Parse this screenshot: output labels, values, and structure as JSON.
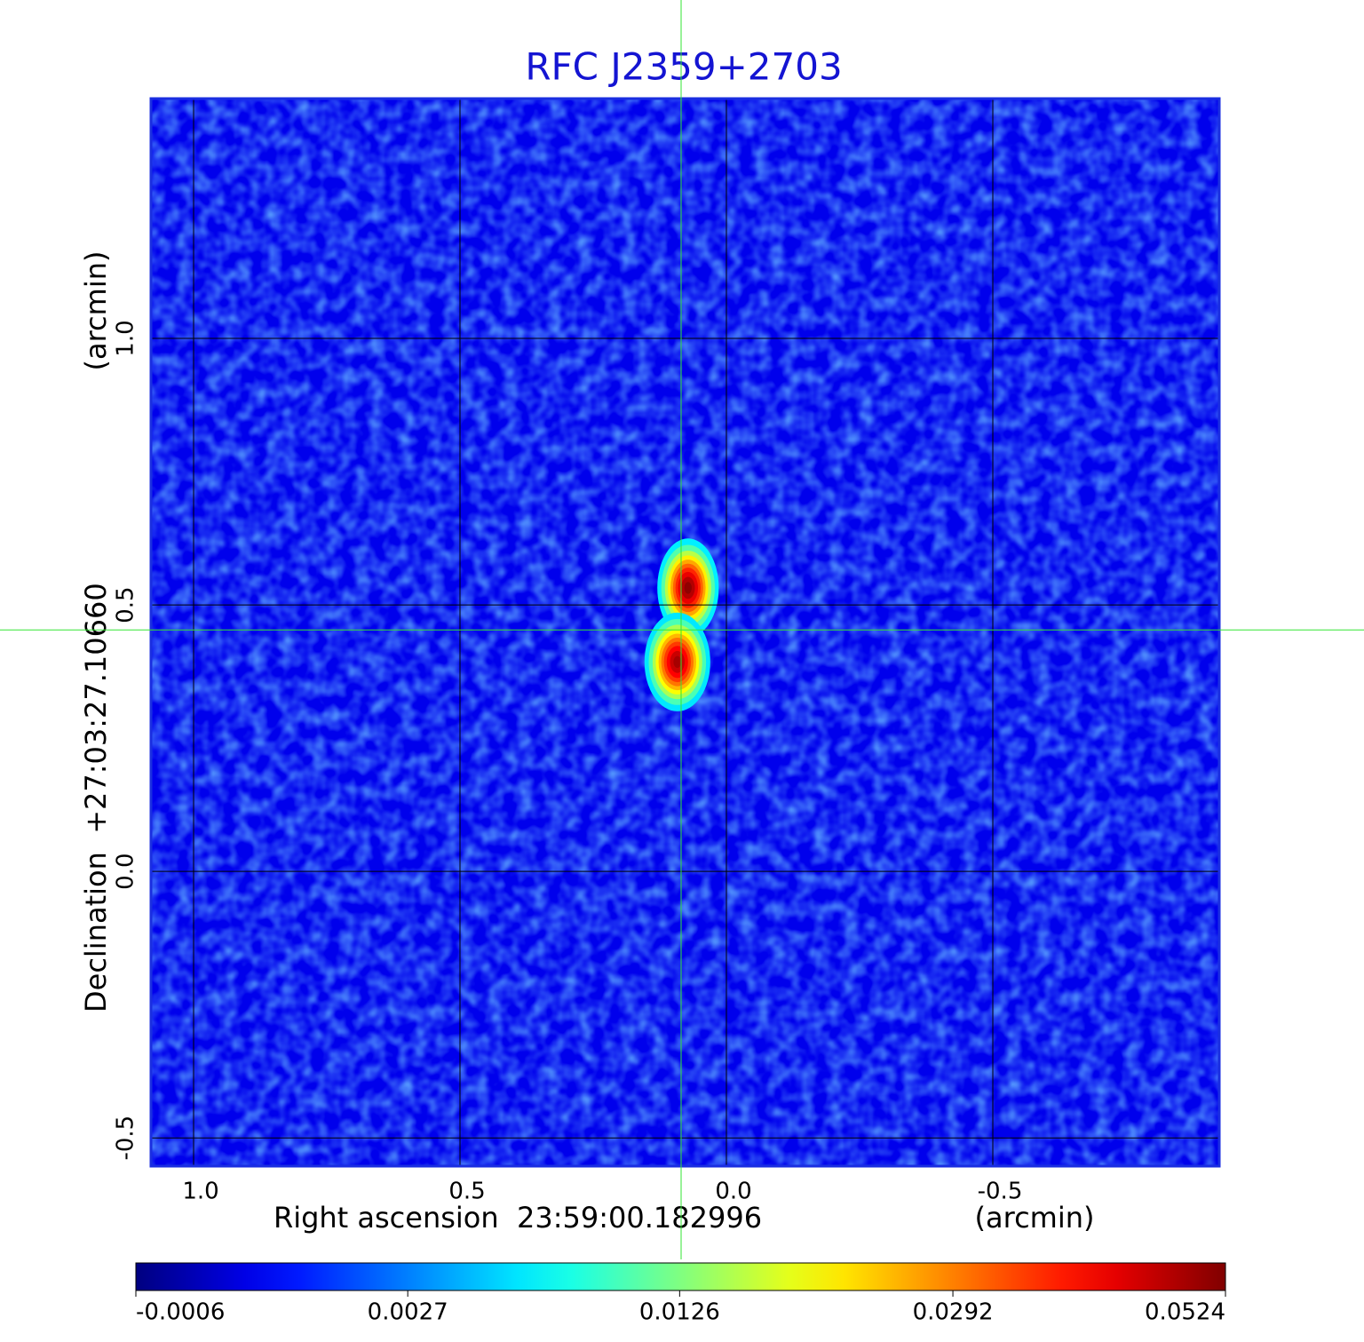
{
  "chart_data": {
    "type": "image",
    "title": "RFC J2359+2703",
    "xlabel": "Right ascension  23:59:00.182996",
    "xunit": "(arcmin)",
    "ylabel": "Declination  +27:03:27.10660",
    "yunit": "(arcmin)",
    "xlim": [
      1.08,
      -0.925
    ],
    "ylim": [
      -0.553,
      1.45
    ],
    "xticks": [
      {
        "value": 1,
        "label": "1.0"
      },
      0.5,
      {
        "value": 0,
        "label": "0.0"
      },
      -0.5
    ],
    "yticks": [
      -0.5,
      {
        "value": 0,
        "label": "0.0"
      },
      0.5,
      {
        "value": 1,
        "label": "1.0"
      }
    ],
    "grid": true,
    "colormap": "jet",
    "colorbar_scale": "sqrt",
    "clim": [
      -0.0006,
      0.0524
    ],
    "colorbar_ticks": [
      -0.0006,
      0.0027,
      0.0126,
      0.0292,
      0.0524
    ],
    "background_value": 0,
    "crosshair": [
      0.085,
      0.453
    ],
    "sources": [
      {
        "x": 0.072,
        "y": 0.532,
        "peak": 0.0524,
        "sigma_x": 0.028,
        "sigma_y": 0.045
      },
      {
        "x": 0.092,
        "y": 0.393,
        "peak": 0.05,
        "sigma_x": 0.03,
        "sigma_y": 0.045
      }
    ]
  }
}
